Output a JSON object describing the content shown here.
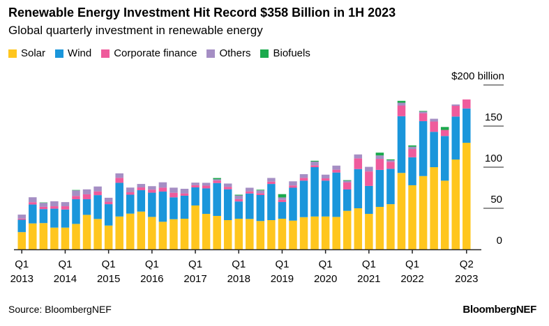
{
  "title": "Renewable Energy Investment Hit Record $358 Billion in 1H 2023",
  "subtitle": "Global quarterly investment in renewable energy",
  "source": "Source: BloombergNEF",
  "logo": "BloombergNEF",
  "chart_data": {
    "type": "bar",
    "stacked": true,
    "title": "Renewable Energy Investment Hit Record $358 Billion in 1H 2023",
    "subtitle": "Global quarterly investment in renewable energy",
    "ylabel": "",
    "ylim": [
      0,
      200
    ],
    "yticks": [
      0,
      50,
      100,
      150,
      200
    ],
    "ytick_labels": [
      "0",
      "50",
      "100",
      "150",
      "$200 billion"
    ],
    "legend_position": "top-left",
    "x_tick_labels": [
      {
        "index": 0,
        "q": "Q1",
        "year": "2013"
      },
      {
        "index": 4,
        "q": "Q1",
        "year": "2014"
      },
      {
        "index": 8,
        "q": "Q1",
        "year": "2015"
      },
      {
        "index": 12,
        "q": "Q1",
        "year": "2016"
      },
      {
        "index": 16,
        "q": "Q1",
        "year": "2017"
      },
      {
        "index": 20,
        "q": "Q1",
        "year": "2018"
      },
      {
        "index": 24,
        "q": "Q1",
        "year": "2019"
      },
      {
        "index": 28,
        "q": "Q1",
        "year": "2020"
      },
      {
        "index": 32,
        "q": "Q1",
        "year": "2021"
      },
      {
        "index": 36,
        "q": "Q1",
        "year": "2022"
      },
      {
        "index": 41,
        "q": "Q2",
        "year": "2023"
      }
    ],
    "categories": [
      "2013Q1",
      "2013Q2",
      "2013Q3",
      "2013Q4",
      "2014Q1",
      "2014Q2",
      "2014Q3",
      "2014Q4",
      "2015Q1",
      "2015Q2",
      "2015Q3",
      "2015Q4",
      "2016Q1",
      "2016Q2",
      "2016Q3",
      "2016Q4",
      "2017Q1",
      "2017Q2",
      "2017Q3",
      "2017Q4",
      "2018Q1",
      "2018Q2",
      "2018Q3",
      "2018Q4",
      "2019Q1",
      "2019Q2",
      "2019Q3",
      "2019Q4",
      "2020Q1",
      "2020Q2",
      "2020Q3",
      "2020Q4",
      "2021Q1",
      "2021Q2",
      "2021Q3",
      "2021Q4",
      "2022Q1",
      "2022Q2",
      "2022Q3",
      "2022Q4",
      "2023Q1",
      "2023Q2"
    ],
    "series": [
      {
        "name": "Solar",
        "color": "#FFC61E",
        "values": [
          21,
          31.6,
          32,
          26.5,
          26.5,
          31,
          42,
          37,
          29,
          40,
          43.5,
          46,
          39.5,
          33.6,
          36.7,
          37.3,
          53.4,
          43.2,
          40.7,
          35.6,
          37.3,
          37,
          34.5,
          35.6,
          37.3,
          35,
          39.2,
          40,
          40,
          39.5,
          46.9,
          50,
          43.2,
          51.7,
          55,
          93,
          78,
          89.2,
          100,
          83.6,
          109.3,
          129.7
        ]
      },
      {
        "name": "Wind",
        "color": "#1A96DB",
        "values": [
          15,
          23,
          17,
          23,
          22,
          30,
          19,
          29,
          26,
          41,
          23,
          26,
          29.5,
          36.7,
          26.6,
          28,
          22,
          31,
          40,
          37.5,
          21,
          31,
          31.6,
          44,
          20.3,
          40,
          44.4,
          60,
          43.6,
          54,
          26,
          47.7,
          34,
          45,
          43,
          69,
          34,
          66.8,
          43,
          54.3,
          52.3,
          41.7
        ]
      },
      {
        "name": "Corporate finance",
        "color": "#EF5B9C",
        "values": [
          1.5,
          2.8,
          2.8,
          3,
          4,
          4,
          6,
          4.5,
          3,
          6,
          3,
          3.4,
          3.7,
          4.8,
          5.6,
          2.8,
          2.8,
          3.4,
          3,
          3,
          2.8,
          2.5,
          2.3,
          2.8,
          2.8,
          2.8,
          3.4,
          2.3,
          2.8,
          3.4,
          8.5,
          13,
          17.6,
          13.4,
          8.5,
          13,
          10,
          9.6,
          12.5,
          7.4,
          13,
          11
        ]
      },
      {
        "name": "Others",
        "color": "#A58EC4",
        "values": [
          4.8,
          6,
          4.8,
          6,
          5,
          6.8,
          6,
          6,
          4.8,
          5.5,
          5.7,
          4.2,
          4.2,
          6.5,
          6.2,
          5.6,
          3,
          3.4,
          1.6,
          4,
          4.5,
          4.5,
          3.4,
          4.5,
          2.8,
          5,
          4.5,
          4.5,
          4.5,
          5,
          2,
          4.8,
          5.6,
          4.2,
          2,
          3.4,
          2.8,
          2,
          3.4,
          0,
          1.7,
          0
        ]
      },
      {
        "name": "Biofuels",
        "color": "#1BAA4D",
        "values": [
          0,
          0,
          0.5,
          0,
          0,
          0.5,
          0,
          0,
          0,
          0,
          0,
          0,
          0,
          0,
          0,
          0,
          0,
          0,
          1.5,
          0,
          0.9,
          0,
          0.8,
          0,
          4,
          0,
          0,
          1,
          0,
          0,
          0.8,
          0,
          0,
          3.4,
          1,
          2.3,
          1.7,
          0.8,
          0,
          3.6,
          0,
          0
        ]
      }
    ]
  }
}
